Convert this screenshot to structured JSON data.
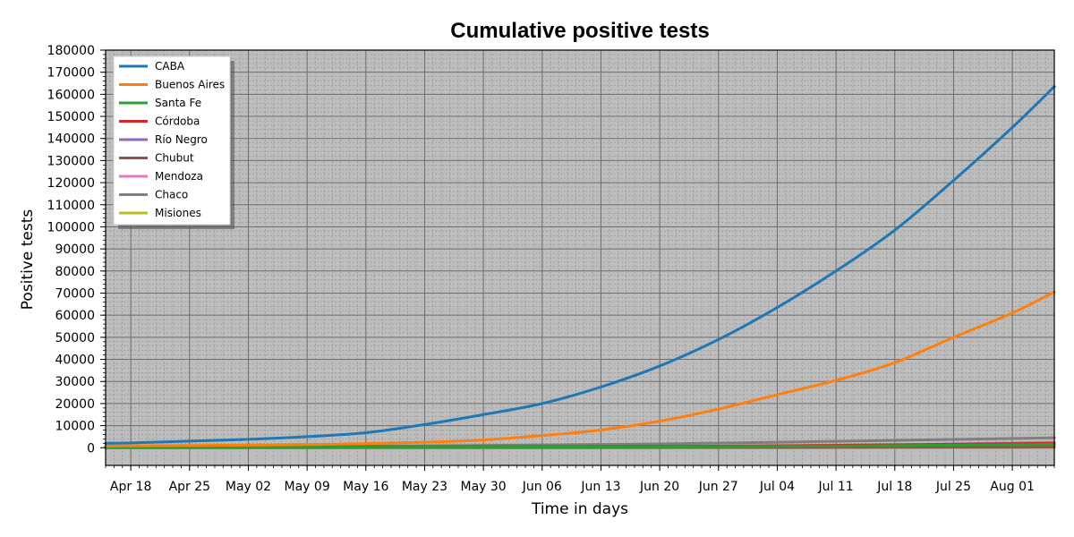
{
  "chart_data": {
    "type": "line",
    "title": "Cumulative positive tests",
    "xlabel": "Time in days",
    "ylabel": "Positive tests",
    "ylim": [
      -8000,
      180000
    ],
    "y_ticks": [
      0,
      10000,
      20000,
      30000,
      40000,
      50000,
      60000,
      70000,
      80000,
      90000,
      100000,
      110000,
      120000,
      130000,
      140000,
      150000,
      160000,
      170000,
      180000
    ],
    "x_range": [
      "2020-04-15",
      "2020-08-06"
    ],
    "x_ticks": [
      {
        "date": "2020-04-18",
        "label": "Apr 18"
      },
      {
        "date": "2020-04-25",
        "label": "Apr 25"
      },
      {
        "date": "2020-05-02",
        "label": "May 02"
      },
      {
        "date": "2020-05-09",
        "label": "May 09"
      },
      {
        "date": "2020-05-16",
        "label": "May 16"
      },
      {
        "date": "2020-05-23",
        "label": "May 23"
      },
      {
        "date": "2020-05-30",
        "label": "May 30"
      },
      {
        "date": "2020-06-06",
        "label": "Jun 06"
      },
      {
        "date": "2020-06-13",
        "label": "Jun 13"
      },
      {
        "date": "2020-06-20",
        "label": "Jun 20"
      },
      {
        "date": "2020-06-27",
        "label": "Jun 27"
      },
      {
        "date": "2020-07-04",
        "label": "Jul 04"
      },
      {
        "date": "2020-07-11",
        "label": "Jul 11"
      },
      {
        "date": "2020-07-18",
        "label": "Jul 18"
      },
      {
        "date": "2020-07-25",
        "label": "Jul 25"
      },
      {
        "date": "2020-08-01",
        "label": "Aug 01"
      }
    ],
    "grid": true,
    "background": "#bdbdbd",
    "legend_position": "top-left",
    "series": [
      {
        "name": "CABA",
        "color": "#1f77b4",
        "points": [
          [
            "2020-04-15",
            2000
          ],
          [
            "2020-04-18",
            2200
          ],
          [
            "2020-04-25",
            3000
          ],
          [
            "2020-05-02",
            3800
          ],
          [
            "2020-05-09",
            5000
          ],
          [
            "2020-05-16",
            6800
          ],
          [
            "2020-05-23",
            10500
          ],
          [
            "2020-05-30",
            15000
          ],
          [
            "2020-06-06",
            20000
          ],
          [
            "2020-06-13",
            27500
          ],
          [
            "2020-06-20",
            37000
          ],
          [
            "2020-06-27",
            49000
          ],
          [
            "2020-07-04",
            63500
          ],
          [
            "2020-07-11",
            80000
          ],
          [
            "2020-07-18",
            98500
          ],
          [
            "2020-07-25",
            121000
          ],
          [
            "2020-08-01",
            145000
          ],
          [
            "2020-08-06",
            163500
          ]
        ]
      },
      {
        "name": "Buenos Aires",
        "color": "#ff7f0e",
        "points": [
          [
            "2020-04-15",
            800
          ],
          [
            "2020-04-25",
            1000
          ],
          [
            "2020-05-09",
            1400
          ],
          [
            "2020-05-23",
            2500
          ],
          [
            "2020-05-30",
            3500
          ],
          [
            "2020-06-06",
            5500
          ],
          [
            "2020-06-13",
            8000
          ],
          [
            "2020-06-20",
            12000
          ],
          [
            "2020-06-27",
            17500
          ],
          [
            "2020-07-04",
            24000
          ],
          [
            "2020-07-11",
            30500
          ],
          [
            "2020-07-18",
            38500
          ],
          [
            "2020-07-25",
            50000
          ],
          [
            "2020-08-01",
            61000
          ],
          [
            "2020-08-06",
            70500
          ]
        ]
      },
      {
        "name": "Santa Fe",
        "color": "#2ca02c",
        "points": [
          [
            "2020-04-15",
            200
          ],
          [
            "2020-06-06",
            300
          ],
          [
            "2020-07-04",
            600
          ],
          [
            "2020-08-06",
            1500
          ]
        ]
      },
      {
        "name": "Córdoba",
        "color": "#d62728",
        "points": [
          [
            "2020-04-15",
            300
          ],
          [
            "2020-06-06",
            500
          ],
          [
            "2020-07-04",
            900
          ],
          [
            "2020-08-06",
            2000
          ]
        ]
      },
      {
        "name": "Río Negro",
        "color": "#9467bd",
        "points": [
          [
            "2020-04-15",
            200
          ],
          [
            "2020-06-06",
            400
          ],
          [
            "2020-07-04",
            800
          ],
          [
            "2020-08-06",
            2200
          ]
        ]
      },
      {
        "name": "Chubut",
        "color": "#8c564b",
        "points": [
          [
            "2020-04-15",
            0
          ],
          [
            "2020-07-04",
            100
          ],
          [
            "2020-08-06",
            300
          ]
        ]
      },
      {
        "name": "Mendoza",
        "color": "#e377c2",
        "points": [
          [
            "2020-04-15",
            100
          ],
          [
            "2020-06-06",
            200
          ],
          [
            "2020-07-04",
            600
          ],
          [
            "2020-08-06",
            2500
          ]
        ]
      },
      {
        "name": "Chaco",
        "color": "#7f7f7f",
        "points": [
          [
            "2020-04-15",
            300
          ],
          [
            "2020-05-02",
            600
          ],
          [
            "2020-06-06",
            1200
          ],
          [
            "2020-07-04",
            2500
          ],
          [
            "2020-08-06",
            4500
          ]
        ]
      },
      {
        "name": "Misiones",
        "color": "#bcbd22",
        "points": [
          [
            "2020-04-15",
            0
          ],
          [
            "2020-08-06",
            100
          ]
        ]
      }
    ]
  }
}
